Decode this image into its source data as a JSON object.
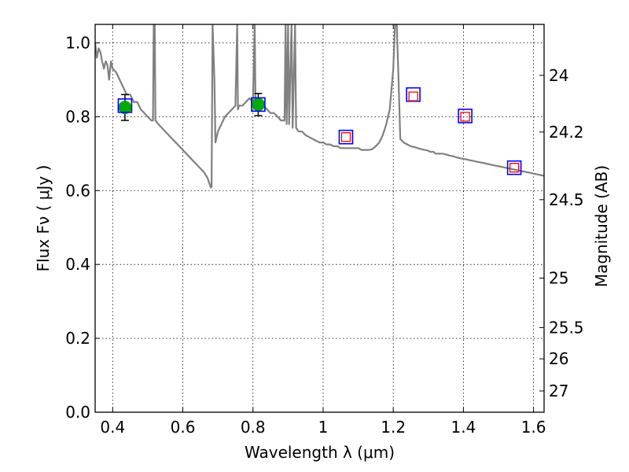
{
  "chart_data": {
    "type": "line",
    "xlabel": "Wavelength  λ (μm)",
    "ylabel": "Flux  Fν  ( μJy )",
    "ylabel_right": "Magnitude (AB)",
    "xlim": [
      0.35,
      1.63
    ],
    "ylim": [
      0.0,
      1.05
    ],
    "grid": true,
    "x_ticks": [
      {
        "value": 0.4,
        "label": "0.4"
      },
      {
        "value": 0.6,
        "label": "0.6"
      },
      {
        "value": 0.8,
        "label": "0.8"
      },
      {
        "value": 1.0,
        "label": "1"
      },
      {
        "value": 1.2,
        "label": "1.2"
      },
      {
        "value": 1.4,
        "label": "1.4"
      },
      {
        "value": 1.6,
        "label": "1.6"
      }
    ],
    "y_ticks": [
      {
        "value": 0.0,
        "label": "0.0"
      },
      {
        "value": 0.2,
        "label": "0.2"
      },
      {
        "value": 0.4,
        "label": "0.4"
      },
      {
        "value": 0.6,
        "label": "0.6"
      },
      {
        "value": 0.8,
        "label": "0.8"
      },
      {
        "value": 1.0,
        "label": "1.0"
      }
    ],
    "y2_ticks": [
      {
        "value": 24.0,
        "label": "24"
      },
      {
        "value": 24.2,
        "label": "24.2"
      },
      {
        "value": 24.5,
        "label": "24.5"
      },
      {
        "value": 25.0,
        "label": "25"
      },
      {
        "value": 25.5,
        "label": "25.5"
      },
      {
        "value": 26.0,
        "label": "26"
      },
      {
        "value": 27.0,
        "label": "27"
      }
    ],
    "series": [
      {
        "kind": "line",
        "color": "#808080",
        "points": [
          [
            0.35,
            1.0
          ],
          [
            0.355,
            0.96
          ],
          [
            0.36,
            0.985
          ],
          [
            0.365,
            0.975
          ],
          [
            0.37,
            0.95
          ],
          [
            0.375,
            0.93
          ],
          [
            0.38,
            0.95
          ],
          [
            0.385,
            0.94
          ],
          [
            0.39,
            0.9
          ],
          [
            0.395,
            0.95
          ],
          [
            0.4,
            0.93
          ],
          [
            0.41,
            0.92
          ],
          [
            0.42,
            0.9
          ],
          [
            0.43,
            0.88
          ],
          [
            0.44,
            0.86
          ],
          [
            0.45,
            0.86
          ],
          [
            0.46,
            0.84
          ],
          [
            0.47,
            0.84
          ],
          [
            0.48,
            0.82
          ],
          [
            0.49,
            0.81
          ],
          [
            0.5,
            0.8
          ],
          [
            0.51,
            0.79
          ],
          [
            0.515,
            0.79
          ],
          [
            0.517,
            1.05
          ],
          [
            0.52,
            1.05
          ],
          [
            0.522,
            0.79
          ],
          [
            0.53,
            0.78
          ],
          [
            0.54,
            0.77
          ],
          [
            0.55,
            0.76
          ],
          [
            0.56,
            0.75
          ],
          [
            0.57,
            0.74
          ],
          [
            0.58,
            0.73
          ],
          [
            0.59,
            0.72
          ],
          [
            0.6,
            0.71
          ],
          [
            0.61,
            0.7
          ],
          [
            0.62,
            0.69
          ],
          [
            0.63,
            0.68
          ],
          [
            0.64,
            0.67
          ],
          [
            0.65,
            0.66
          ],
          [
            0.66,
            0.65
          ],
          [
            0.67,
            0.635
          ],
          [
            0.68,
            0.608
          ],
          [
            0.682,
            0.61
          ],
          [
            0.685,
            1.05
          ],
          [
            0.69,
            0.9
          ],
          [
            0.693,
            0.73
          ],
          [
            0.7,
            0.76
          ],
          [
            0.71,
            0.78
          ],
          [
            0.72,
            0.8
          ],
          [
            0.73,
            0.81
          ],
          [
            0.74,
            0.82
          ],
          [
            0.75,
            0.83
          ],
          [
            0.755,
            1.05
          ],
          [
            0.757,
            0.82
          ],
          [
            0.76,
            0.83
          ],
          [
            0.77,
            0.83
          ],
          [
            0.78,
            0.84
          ],
          [
            0.79,
            0.85
          ],
          [
            0.8,
            0.84
          ],
          [
            0.805,
            1.05
          ],
          [
            0.807,
            0.84
          ],
          [
            0.81,
            0.84
          ],
          [
            0.82,
            0.83
          ],
          [
            0.83,
            0.83
          ],
          [
            0.84,
            0.82
          ],
          [
            0.85,
            0.81
          ],
          [
            0.86,
            0.81
          ],
          [
            0.87,
            0.8
          ],
          [
            0.88,
            0.79
          ],
          [
            0.89,
            0.79
          ],
          [
            0.893,
            1.05
          ],
          [
            0.896,
            0.78
          ],
          [
            0.9,
            1.05
          ],
          [
            0.903,
            0.78
          ],
          [
            0.91,
            1.05
          ],
          [
            0.913,
            0.77
          ],
          [
            0.92,
            1.05
          ],
          [
            0.923,
            0.77
          ],
          [
            0.93,
            0.76
          ],
          [
            0.94,
            0.76
          ],
          [
            0.95,
            0.75
          ],
          [
            0.96,
            0.745
          ],
          [
            0.97,
            0.74
          ],
          [
            0.98,
            0.735
          ],
          [
            0.99,
            0.73
          ],
          [
            1.0,
            0.73
          ],
          [
            1.01,
            0.725
          ],
          [
            1.02,
            0.725
          ],
          [
            1.03,
            0.72
          ],
          [
            1.04,
            0.72
          ],
          [
            1.05,
            0.715
          ],
          [
            1.06,
            0.715
          ],
          [
            1.07,
            0.715
          ],
          [
            1.08,
            0.715
          ],
          [
            1.09,
            0.715
          ],
          [
            1.1,
            0.715
          ],
          [
            1.11,
            0.71
          ],
          [
            1.12,
            0.71
          ],
          [
            1.13,
            0.71
          ],
          [
            1.14,
            0.712
          ],
          [
            1.15,
            0.72
          ],
          [
            1.16,
            0.73
          ],
          [
            1.17,
            0.75
          ],
          [
            1.18,
            0.78
          ],
          [
            1.19,
            0.82
          ],
          [
            1.2,
            0.93
          ],
          [
            1.205,
            1.05
          ],
          [
            1.21,
            1.05
          ],
          [
            1.215,
            0.9
          ],
          [
            1.22,
            0.74
          ],
          [
            1.23,
            0.73
          ],
          [
            1.24,
            0.725
          ],
          [
            1.25,
            0.72
          ],
          [
            1.26,
            0.718
          ],
          [
            1.27,
            0.715
          ],
          [
            1.28,
            0.712
          ],
          [
            1.29,
            0.71
          ],
          [
            1.3,
            0.708
          ],
          [
            1.305,
            0.705
          ],
          [
            1.31,
            0.705
          ],
          [
            1.315,
            0.705
          ],
          [
            1.32,
            0.7
          ],
          [
            1.33,
            0.7
          ],
          [
            1.34,
            0.7
          ],
          [
            1.35,
            0.698
          ],
          [
            1.36,
            0.695
          ],
          [
            1.37,
            0.693
          ],
          [
            1.38,
            0.69
          ],
          [
            1.39,
            0.688
          ],
          [
            1.4,
            0.686
          ],
          [
            1.41,
            0.684
          ],
          [
            1.42,
            0.682
          ],
          [
            1.43,
            0.68
          ],
          [
            1.44,
            0.678
          ],
          [
            1.45,
            0.676
          ],
          [
            1.46,
            0.674
          ],
          [
            1.47,
            0.672
          ],
          [
            1.48,
            0.67
          ],
          [
            1.49,
            0.668
          ],
          [
            1.5,
            0.666
          ],
          [
            1.51,
            0.664
          ],
          [
            1.52,
            0.662
          ],
          [
            1.53,
            0.66
          ],
          [
            1.54,
            0.658
          ],
          [
            1.55,
            0.656
          ],
          [
            1.56,
            0.654
          ],
          [
            1.57,
            0.652
          ],
          [
            1.58,
            0.65
          ],
          [
            1.59,
            0.648
          ],
          [
            1.6,
            0.646
          ],
          [
            1.61,
            0.644
          ],
          [
            1.62,
            0.642
          ],
          [
            1.63,
            0.64
          ]
        ]
      },
      {
        "kind": "detections",
        "color": "#00aa00",
        "points": [
          [
            0.435,
            0.825,
            0.035
          ],
          [
            0.815,
            0.833,
            0.03
          ]
        ]
      },
      {
        "kind": "model_squares",
        "color": "#0000ff",
        "points": [
          [
            0.435,
            0.83
          ],
          [
            0.815,
            0.833
          ],
          [
            1.065,
            0.745
          ],
          [
            1.257,
            0.86
          ],
          [
            1.405,
            0.802
          ],
          [
            1.545,
            0.662
          ]
        ]
      },
      {
        "kind": "limit_squares",
        "color": "#ff0000",
        "points": [
          [
            1.065,
            0.745
          ],
          [
            1.257,
            0.855
          ],
          [
            1.405,
            0.8
          ],
          [
            1.545,
            0.662
          ]
        ]
      }
    ]
  }
}
